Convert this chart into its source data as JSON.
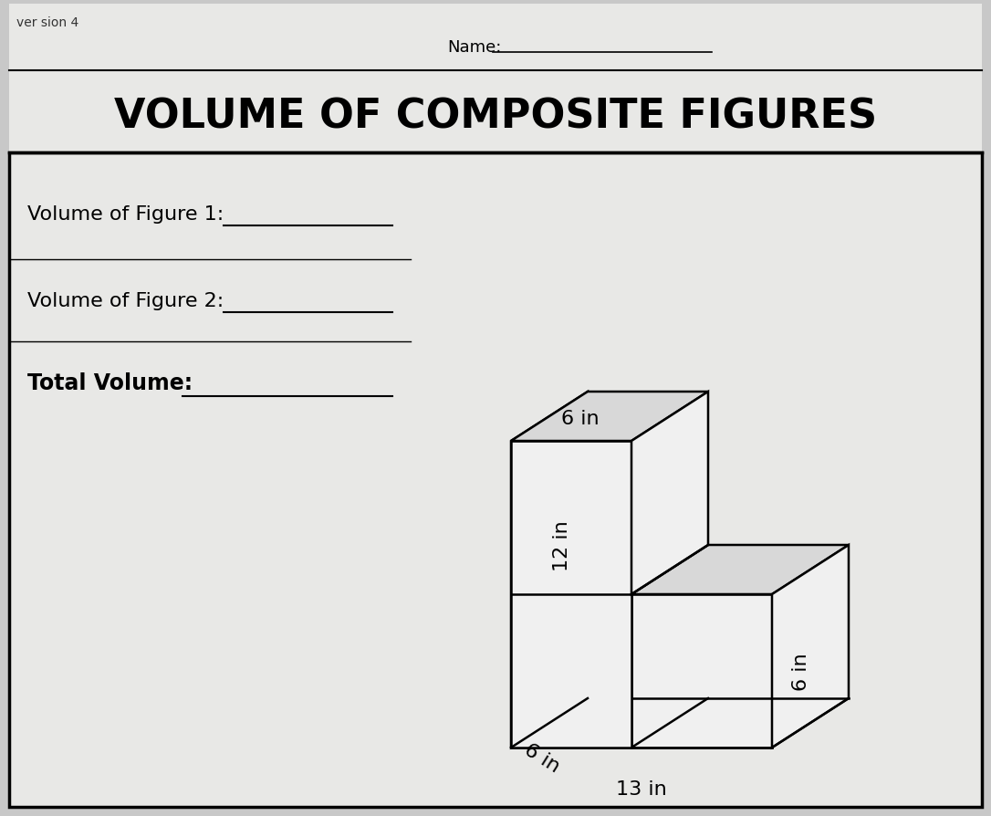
{
  "title": "VOLUME OF COMPOSITE FIGURES",
  "name_label": "Name:",
  "version_text": "ver sion 4",
  "line1_label": "Volume of Figure 1:",
  "line2_label": "Volume of Figure 2:",
  "line3_label": "Total Volume:",
  "dim_top": "6 in",
  "dim_height": "12 in",
  "dim_depth": "6 in",
  "dim_width": "13 in",
  "dim_right_height": "6 in",
  "bg_color": "#c8c8c8",
  "paper_color": "#e8e8e6",
  "title_fontsize": 32,
  "label_fontsize": 16,
  "dim_fontsize": 14,
  "left_face_color": "#aaaaaa",
  "front_face_color": "#f0f0f0",
  "top_face_color": "#d8d8d8"
}
